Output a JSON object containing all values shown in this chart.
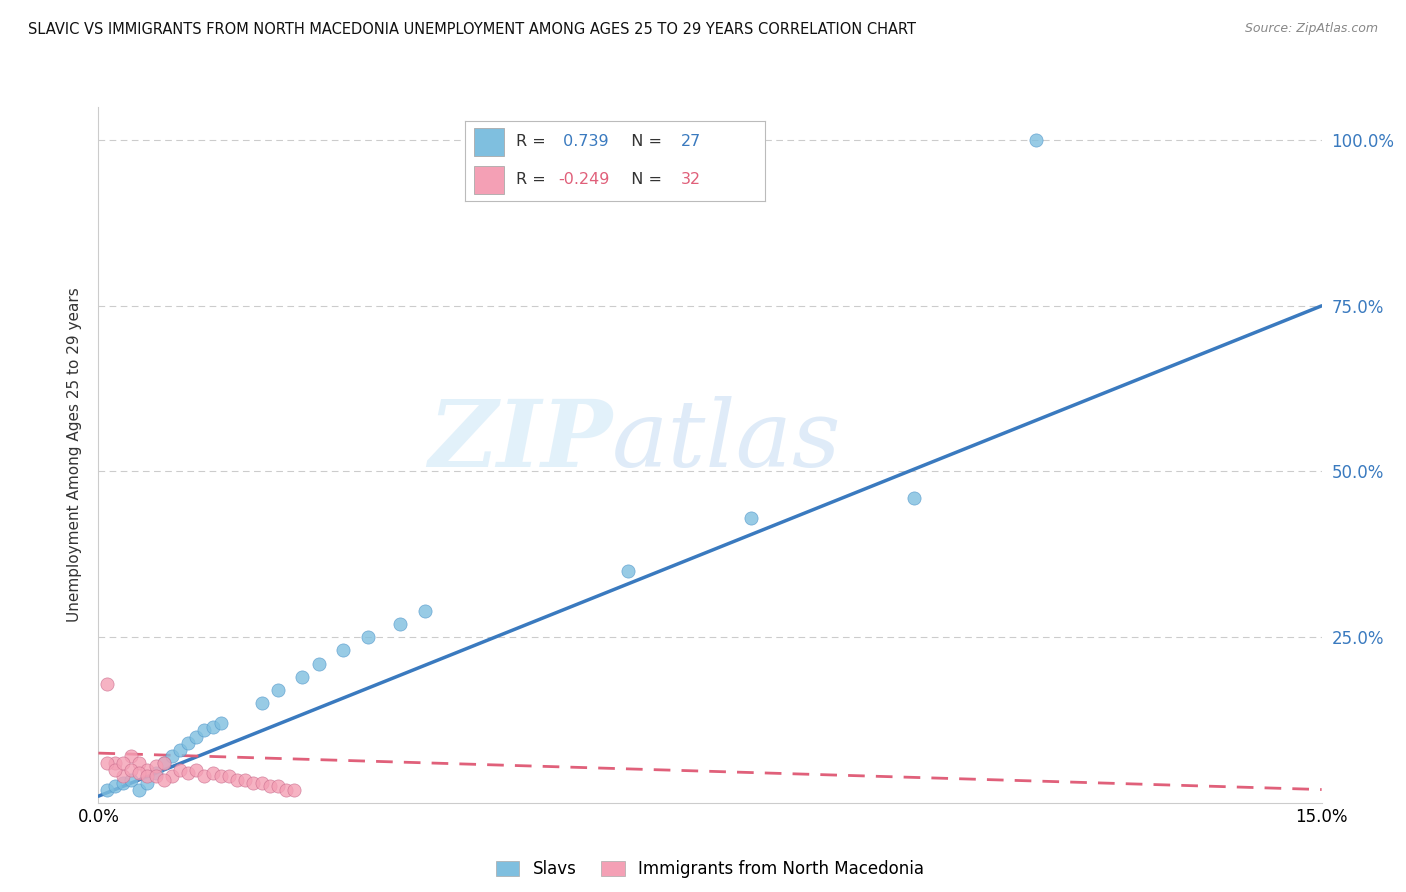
{
  "title": "SLAVIC VS IMMIGRANTS FROM NORTH MACEDONIA UNEMPLOYMENT AMONG AGES 25 TO 29 YEARS CORRELATION CHART",
  "source": "Source: ZipAtlas.com",
  "ylabel": "Unemployment Among Ages 25 to 29 years",
  "xmin": 0.0,
  "xmax": 0.15,
  "ymin": 0.0,
  "ymax": 1.05,
  "R1": 0.739,
  "N1": 27,
  "R2": -0.249,
  "N2": 32,
  "color_slavs": "#7fbfdf",
  "color_immig": "#f4a0b5",
  "color_line_slavs": "#3a7abf",
  "color_line_immig": "#e0607a",
  "background_color": "#ffffff",
  "watermark_zip": "ZIP",
  "watermark_atlas": "atlas",
  "legend_label_1": "Slavs",
  "legend_label_2": "Immigrants from North Macedonia",
  "slavs_x": [
    0.001,
    0.002,
    0.003,
    0.004,
    0.005,
    0.006,
    0.007,
    0.008,
    0.009,
    0.01,
    0.011,
    0.012,
    0.013,
    0.014,
    0.015,
    0.02,
    0.022,
    0.025,
    0.027,
    0.03,
    0.033,
    0.037,
    0.04,
    0.065,
    0.08,
    0.1,
    0.115
  ],
  "slavs_y": [
    0.02,
    0.025,
    0.03,
    0.035,
    0.02,
    0.03,
    0.045,
    0.06,
    0.07,
    0.08,
    0.09,
    0.1,
    0.11,
    0.115,
    0.12,
    0.15,
    0.17,
    0.19,
    0.21,
    0.23,
    0.25,
    0.27,
    0.29,
    0.35,
    0.43,
    0.46,
    1.0
  ],
  "immig_x": [
    0.001,
    0.002,
    0.003,
    0.004,
    0.005,
    0.006,
    0.007,
    0.008,
    0.009,
    0.01,
    0.011,
    0.012,
    0.013,
    0.014,
    0.015,
    0.016,
    0.017,
    0.018,
    0.019,
    0.02,
    0.021,
    0.022,
    0.023,
    0.024,
    0.001,
    0.002,
    0.003,
    0.004,
    0.005,
    0.006,
    0.007,
    0.008
  ],
  "immig_y": [
    0.18,
    0.06,
    0.04,
    0.07,
    0.06,
    0.05,
    0.055,
    0.06,
    0.04,
    0.05,
    0.045,
    0.05,
    0.04,
    0.045,
    0.04,
    0.04,
    0.035,
    0.035,
    0.03,
    0.03,
    0.025,
    0.025,
    0.02,
    0.02,
    0.06,
    0.05,
    0.06,
    0.05,
    0.045,
    0.04,
    0.04,
    0.035
  ],
  "slavs_line_x": [
    0.0,
    0.15
  ],
  "slavs_line_y": [
    0.01,
    0.75
  ],
  "immig_line_x": [
    0.0,
    0.15
  ],
  "immig_line_y": [
    0.075,
    0.02
  ]
}
